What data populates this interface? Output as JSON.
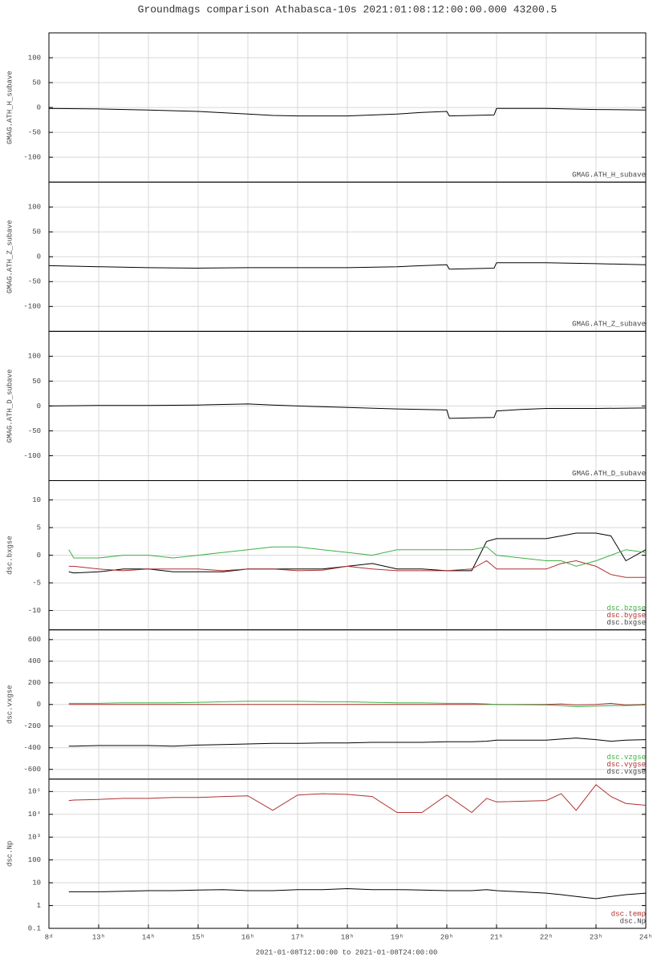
{
  "chart_data": [
    {
      "type": "line",
      "title": "Groundmags comparison Athabasca-10s 2021:01:08:12:00:00.000 43200.5",
      "ylabel": "GMAG.ATH_H_subave",
      "x": [
        12,
        13,
        14,
        15,
        16,
        16.5,
        17,
        18,
        19,
        19.5,
        20,
        20.05,
        20.5,
        20.95,
        21.0,
        21.5,
        22,
        23,
        24
      ],
      "xlim": [
        12,
        24
      ],
      "series": [
        {
          "name": "GMAG.ATH_H_subave",
          "color": "#000000",
          "values": [
            -2,
            -3,
            -5,
            -8,
            -13,
            -16,
            -17,
            -17,
            -13,
            -10,
            -8,
            -17,
            -16,
            -15,
            -2,
            -2,
            -2,
            -4,
            -5
          ]
        }
      ],
      "ylim": [
        -150,
        150
      ],
      "yticks": [
        -100,
        -50,
        0,
        50,
        100
      ],
      "grid": true
    },
    {
      "type": "line",
      "ylabel": "GMAG.ATH_Z_subave",
      "x": [
        12,
        13,
        14,
        15,
        16,
        16.5,
        17,
        18,
        19,
        19.5,
        20,
        20.05,
        20.5,
        20.95,
        21.0,
        21.5,
        22,
        23,
        24
      ],
      "xlim": [
        12,
        24
      ],
      "series": [
        {
          "name": "GMAG.ATH_Z_subave",
          "color": "#000000",
          "values": [
            -18,
            -20,
            -22,
            -23,
            -22,
            -22,
            -22,
            -22,
            -20,
            -18,
            -16,
            -25,
            -24,
            -23,
            -12,
            -12,
            -12,
            -14,
            -16
          ]
        }
      ],
      "ylim": [
        -150,
        150
      ],
      "yticks": [
        -100,
        -50,
        0,
        50,
        100
      ],
      "grid": true
    },
    {
      "type": "line",
      "ylabel": "GMAG.ATH_D_subave",
      "x": [
        12,
        13,
        14,
        15,
        16,
        16.5,
        17,
        18,
        19,
        19.5,
        20,
        20.05,
        20.5,
        20.95,
        21.0,
        21.5,
        22,
        23,
        24
      ],
      "xlim": [
        12,
        24
      ],
      "series": [
        {
          "name": "GMAG.ATH_D_subave",
          "color": "#000000",
          "values": [
            0,
            1,
            1,
            2,
            4,
            2,
            0,
            -3,
            -6,
            -7,
            -8,
            -25,
            -24,
            -23,
            -10,
            -7,
            -5,
            -5,
            -4
          ]
        }
      ],
      "ylim": [
        -150,
        150
      ],
      "yticks": [
        -100,
        -50,
        0,
        50,
        100
      ],
      "grid": true
    },
    {
      "type": "line",
      "ylabel": "dsc.bxgse",
      "x": [
        12.4,
        12.5,
        13,
        13.5,
        14,
        14.5,
        15,
        15.5,
        16,
        16.5,
        17,
        17.5,
        18,
        18.5,
        19,
        19.5,
        20,
        20.5,
        20.8,
        21,
        22,
        22.3,
        22.6,
        23,
        23.3,
        23.6,
        24
      ],
      "xlim": [
        12,
        24
      ],
      "series": [
        {
          "name": "dsc.bxgse",
          "color": "#000000",
          "values": [
            -3,
            -3.2,
            -3,
            -2.5,
            -2.5,
            -3,
            -3,
            -3,
            -2.5,
            -2.5,
            -2.5,
            -2.5,
            -2,
            -1.5,
            -2.5,
            -2.5,
            -2.8,
            -2.8,
            2.5,
            3,
            3,
            3.5,
            4,
            4,
            3.5,
            -1,
            1
          ]
        },
        {
          "name": "dsc.bygse",
          "color": "#b03030",
          "values": [
            -2,
            -2,
            -2.5,
            -2.8,
            -2.5,
            -2.5,
            -2.5,
            -2.8,
            -2.5,
            -2.5,
            -2.8,
            -2.7,
            -2,
            -2.5,
            -2.8,
            -2.8,
            -2.8,
            -2.5,
            -1,
            -2.5,
            -2.5,
            -1.5,
            -1,
            -2,
            -3.5,
            -4,
            -4
          ]
        },
        {
          "name": "dsc.bzgse",
          "color": "#3cb043",
          "values": [
            1,
            -0.5,
            -0.5,
            0,
            0,
            -0.5,
            0,
            0.5,
            1,
            1.5,
            1.5,
            1,
            0.5,
            0,
            1,
            1,
            1,
            1,
            1.5,
            0,
            -1,
            -1,
            -2,
            -1,
            0,
            1,
            0.5
          ]
        }
      ],
      "ylim": [
        -13.5,
        13.5
      ],
      "yticks": [
        -10,
        -5,
        0,
        5,
        10
      ],
      "grid": true
    },
    {
      "type": "line",
      "ylabel": "dsc.vxgse",
      "x": [
        12.4,
        12.5,
        13,
        13.5,
        14,
        14.5,
        15,
        15.5,
        16,
        16.5,
        17,
        17.5,
        18,
        18.5,
        19,
        19.5,
        20,
        20.5,
        20.8,
        21,
        22,
        22.3,
        22.6,
        23,
        23.3,
        23.6,
        24
      ],
      "xlim": [
        12,
        24
      ],
      "series": [
        {
          "name": "dsc.vxgse",
          "color": "#000000",
          "values": [
            -385,
            -385,
            -380,
            -380,
            -380,
            -385,
            -375,
            -370,
            -365,
            -360,
            -360,
            -355,
            -355,
            -350,
            -350,
            -350,
            -345,
            -345,
            -340,
            -330,
            -330,
            -320,
            -310,
            -325,
            -340,
            -330,
            -325
          ]
        },
        {
          "name": "dsc.vygse",
          "color": "#b03030",
          "values": [
            0,
            0,
            0,
            0,
            0,
            0,
            0,
            0,
            0,
            0,
            0,
            0,
            0,
            0,
            0,
            0,
            0,
            0,
            0,
            0,
            0,
            5,
            -5,
            0,
            10,
            -5,
            0
          ]
        },
        {
          "name": "dsc.vzgse",
          "color": "#3cb043",
          "values": [
            10,
            10,
            10,
            15,
            15,
            15,
            20,
            25,
            30,
            30,
            30,
            25,
            25,
            20,
            15,
            15,
            10,
            10,
            5,
            0,
            -5,
            -10,
            -20,
            -15,
            -10,
            -10,
            -5
          ]
        }
      ],
      "ylim": [
        -690,
        690
      ],
      "yticks": [
        -600,
        -400,
        -200,
        0,
        200,
        400,
        600
      ],
      "grid": true
    },
    {
      "type": "line",
      "ylabel": "dsc.Np",
      "log": true,
      "xlabel": "2021-01-08T12:00:00 to 2021-01-08T24:00:00",
      "x": [
        12.4,
        12.5,
        13,
        13.5,
        14,
        14.5,
        15,
        15.5,
        16,
        16.5,
        17,
        17.5,
        18,
        18.5,
        19,
        19.5,
        20,
        20.5,
        20.8,
        21,
        22,
        22.3,
        22.6,
        23,
        23.3,
        23.6,
        24
      ],
      "xlim": [
        12,
        24
      ],
      "xticks": [
        {
          "value": 12,
          "label": "8ᵈ"
        },
        {
          "value": 13,
          "label": "13ʰ"
        },
        {
          "value": 14,
          "label": "14ʰ"
        },
        {
          "value": 15,
          "label": "15ʰ"
        },
        {
          "value": 16,
          "label": "16ʰ"
        },
        {
          "value": 17,
          "label": "17ʰ"
        },
        {
          "value": 18,
          "label": "18ʰ"
        },
        {
          "value": 19,
          "label": "19ʰ"
        },
        {
          "value": 20,
          "label": "20ʰ"
        },
        {
          "value": 21,
          "label": "21ʰ"
        },
        {
          "value": 22,
          "label": "22ʰ"
        },
        {
          "value": 23,
          "label": "23ʰ"
        },
        {
          "value": 24,
          "label": "24ʰ"
        }
      ],
      "series": [
        {
          "name": "dsc.Np",
          "color": "#000000",
          "values": [
            4,
            4,
            4,
            4.2,
            4.5,
            4.5,
            4.8,
            5,
            4.5,
            4.5,
            5,
            5,
            5.5,
            5,
            5,
            4.8,
            4.5,
            4.5,
            5,
            4.5,
            3.5,
            3,
            2.5,
            2,
            2.5,
            3,
            3.5
          ]
        },
        {
          "name": "dsc.temp",
          "color": "#b03030",
          "values": [
            40000,
            42000,
            45000,
            50000,
            50000,
            55000,
            55000,
            60000,
            65000,
            15000,
            70000,
            80000,
            75000,
            60000,
            12000,
            12000,
            70000,
            12000,
            50000,
            35000,
            40000,
            80000,
            15000,
            200000,
            60000,
            30000,
            25000
          ]
        }
      ],
      "ylim": [
        0.1,
        350000
      ],
      "yticks": [
        0.1,
        1,
        10,
        100,
        {
          "value": 1000,
          "label": "10³"
        },
        {
          "value": 10000,
          "label": "10⁴"
        },
        {
          "value": 100000,
          "label": "10⁵"
        }
      ],
      "grid": true
    }
  ]
}
